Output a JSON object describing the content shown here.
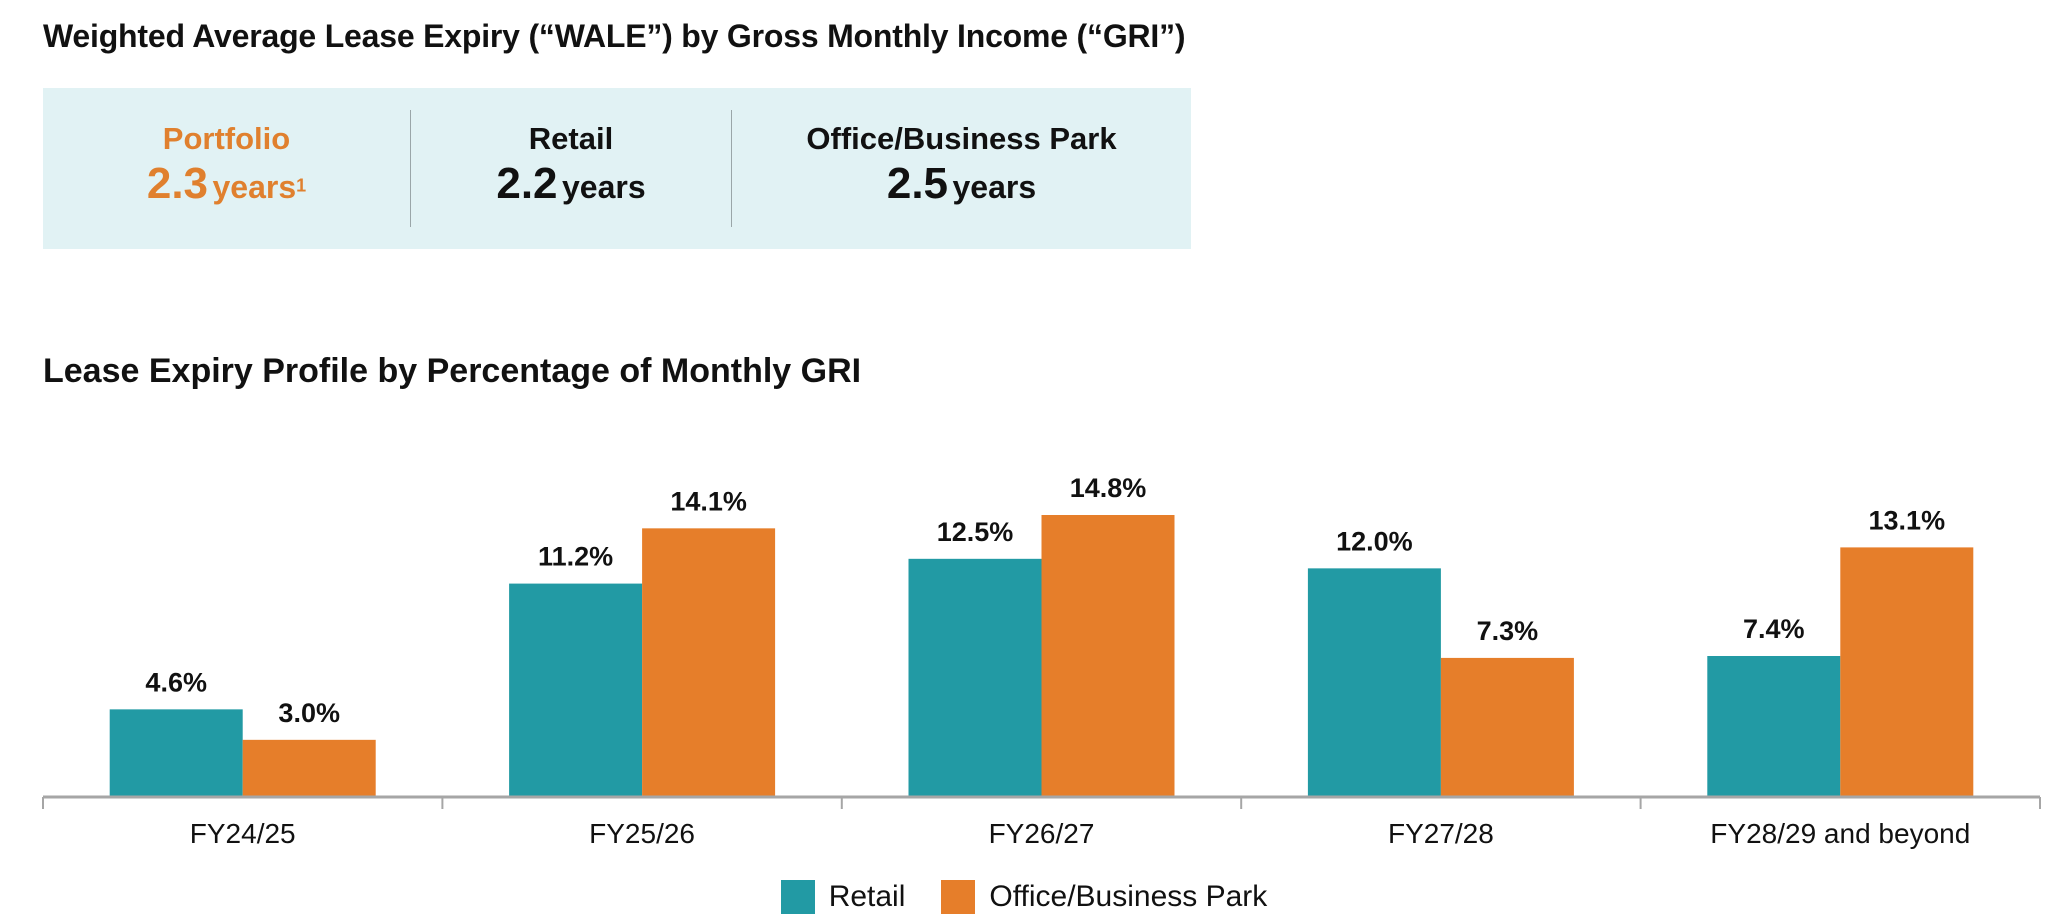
{
  "header": {
    "title": "Weighted Average Lease Expiry (“WALE”) by Gross Monthly Income (“GRI”)"
  },
  "wale": {
    "items": [
      {
        "label": "Portfolio",
        "value": "2.3",
        "unit": "years",
        "footnote": "1",
        "highlight": true
      },
      {
        "label": "Retail",
        "value": "2.2",
        "unit": "years",
        "footnote": "",
        "highlight": false
      },
      {
        "label": "Office/Business Park",
        "value": "2.5",
        "unit": "years",
        "footnote": "",
        "highlight": false
      }
    ]
  },
  "colors": {
    "retail": "#229aa4",
    "office": "#e67e2a",
    "highlight_text": "#e0802e",
    "box_bg": "#e1f2f4",
    "axis": "#a6a6a6"
  },
  "chart_data": {
    "type": "bar",
    "title": "Lease Expiry Profile by Percentage of Monthly GRI",
    "xlabel": "",
    "ylabel": "",
    "categories": [
      "FY24/25",
      "FY25/26",
      "FY26/27",
      "FY27/28",
      "FY28/29 and beyond"
    ],
    "series": [
      {
        "name": "Retail",
        "values": [
          4.6,
          11.2,
          12.5,
          12.0,
          7.4
        ],
        "labels": [
          "4.6%",
          "11.2%",
          "12.5%",
          "12.0%",
          "7.4%"
        ]
      },
      {
        "name": "Office/Business Park",
        "values": [
          3.0,
          14.1,
          14.8,
          7.3,
          13.1
        ],
        "labels": [
          "3.0%",
          "14.1%",
          "14.8%",
          "7.3%",
          "13.1%"
        ]
      }
    ],
    "ylim": [
      0,
      16
    ],
    "grid": false,
    "y_axis_visible": false,
    "legend": "bottom-center",
    "unit": "%"
  }
}
